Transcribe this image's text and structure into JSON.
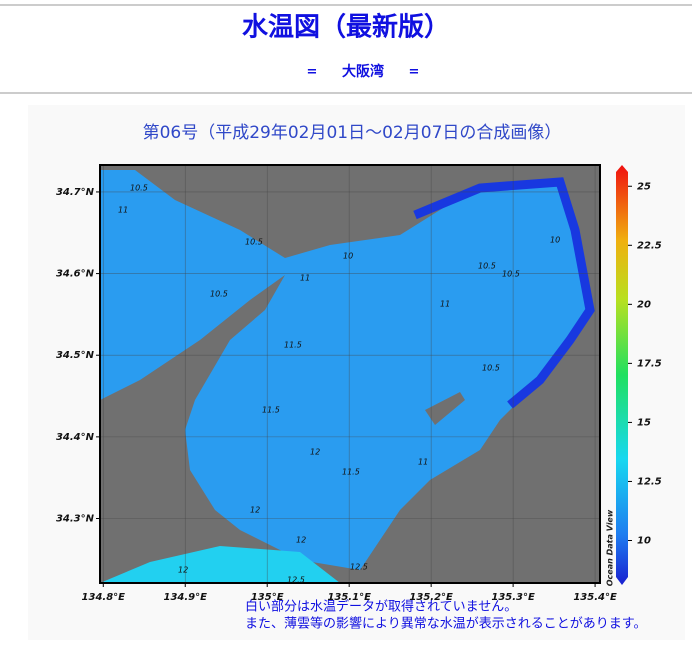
{
  "header": {
    "title": "水温図（最新版）",
    "subtitle_left": "=",
    "subtitle": "大阪湾",
    "subtitle_right": "="
  },
  "map": {
    "title": "第06号（平成29年02月01日～02月07日の合成画像）",
    "xlim": [
      134.796,
      135.406
    ],
    "ylim": [
      34.221,
      34.733
    ],
    "xticks": [
      {
        "value": 134.8,
        "label": "134.8°E"
      },
      {
        "value": 134.9,
        "label": "134.9°E"
      },
      {
        "value": 135.0,
        "label": "135°E"
      },
      {
        "value": 135.1,
        "label": "135.1°E"
      },
      {
        "value": 135.2,
        "label": "135.2°E"
      },
      {
        "value": 135.3,
        "label": "135.3°E"
      },
      {
        "value": 135.4,
        "label": "135.4°E"
      }
    ],
    "yticks": [
      {
        "value": 34.7,
        "label": "34.7°N"
      },
      {
        "value": 34.6,
        "label": "34.6°N"
      },
      {
        "value": 34.5,
        "label": "34.5°N"
      },
      {
        "value": 34.4,
        "label": "34.4°N"
      },
      {
        "value": 34.3,
        "label": "34.3°N"
      }
    ],
    "contour_labels": [
      "10.5",
      "11",
      "10.5",
      "10",
      "11",
      "10.5",
      "11",
      "10.5",
      "10.5",
      "10",
      "11.5",
      "10.5",
      "11.5",
      "12",
      "11.5",
      "11",
      "12",
      "12",
      "12",
      "12.5",
      "12.5"
    ],
    "colorbar": {
      "lim": [
        8.2,
        25.9
      ],
      "ticks": [
        25,
        22.5,
        20,
        17.5,
        15,
        12.5,
        10
      ],
      "label": "Ocean Data View"
    },
    "notes": [
      "白い部分は水温データが取得されていません。",
      "また、薄雲等の影響により異常な水温が表示されることがあります。"
    ]
  }
}
